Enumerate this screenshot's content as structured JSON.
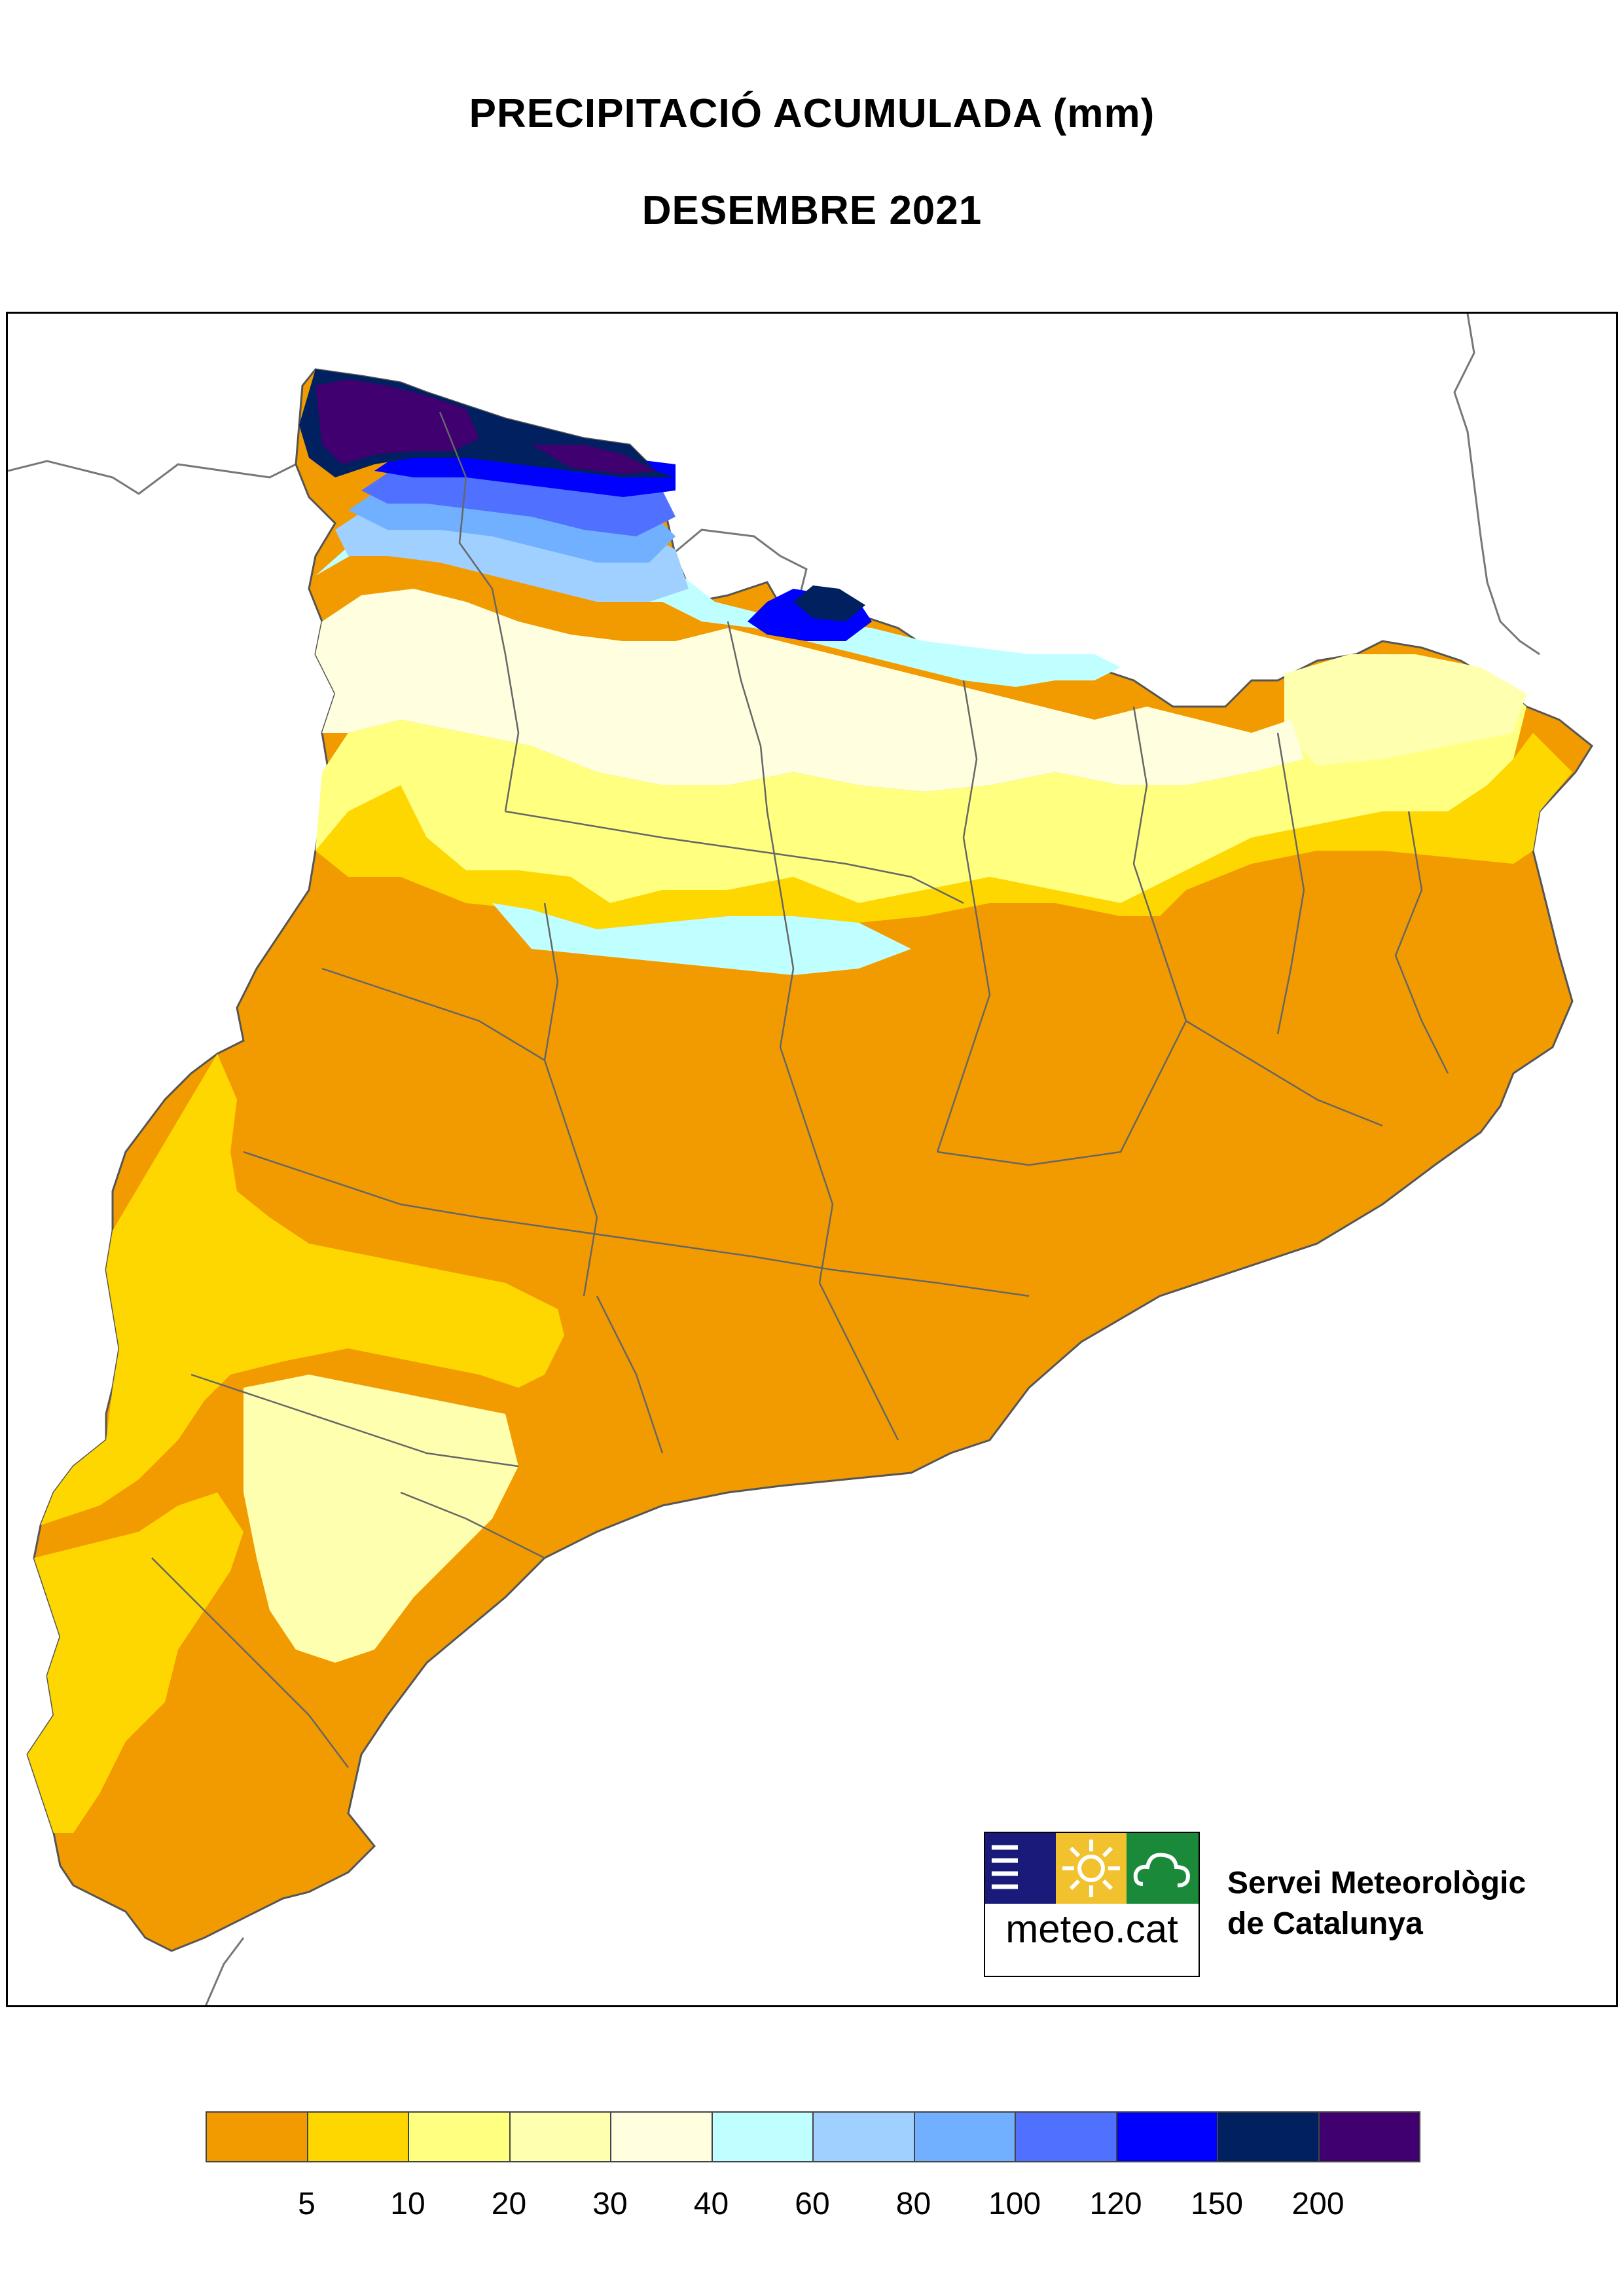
{
  "title": "PRECIPITACIÓ ACUMULADA (mm)",
  "subtitle": "DESEMBRE 2021",
  "organization": {
    "line1": "Servei Meteorològic",
    "line2": "de Catalunya",
    "logo_text": "meteo.cat",
    "logo_colors": [
      "#1a1a7a",
      "#f2c12e",
      "#1a8a3a"
    ],
    "logo_icons": [
      "waves-icon",
      "sun-icon",
      "cloud-icon"
    ]
  },
  "legend": {
    "colors": [
      "#f29b00",
      "#ffd700",
      "#ffff80",
      "#ffffb0",
      "#ffffe0",
      "#c0ffff",
      "#a0d0ff",
      "#70b0ff",
      "#5070ff",
      "#0000ff",
      "#002060",
      "#400070"
    ],
    "ticks": [
      "5",
      "10",
      "20",
      "30",
      "40",
      "60",
      "80",
      "100",
      "120",
      "150",
      "200"
    ]
  }
}
